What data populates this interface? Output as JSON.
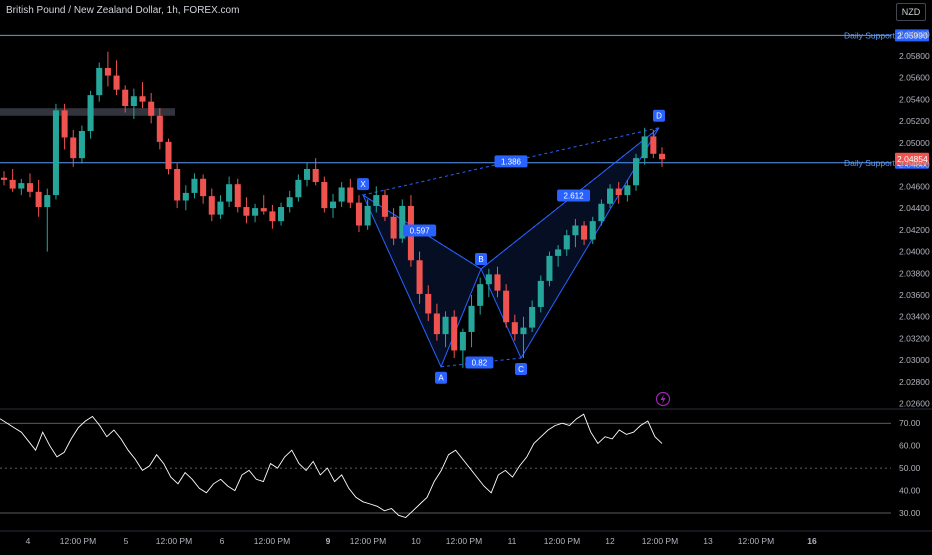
{
  "header": {
    "title": "British Pound / New Zealand Dollar, 1h, FOREX.com",
    "currency": "NZD"
  },
  "colors": {
    "up": "#26a69a",
    "down": "#ef5350",
    "pattern": "#2962ff",
    "support": "#5b9cf6",
    "rsi": "#ffffff",
    "text": "#b2b5be"
  },
  "chart_data": [
    {
      "type": "candlestick",
      "title": "British Pound / New Zealand Dollar, 1h, FOREX.com",
      "x_ticks": [
        "4",
        "12:00 PM",
        "5",
        "12:00 PM",
        "6",
        "12:00 PM",
        "9",
        "12:00 PM",
        "10",
        "12:00 PM",
        "11",
        "12:00 PM",
        "12",
        "12:00 PM",
        "13",
        "12:00 PM",
        "16"
      ],
      "y_ticks": [
        2.06,
        2.058,
        2.056,
        2.054,
        2.052,
        2.05,
        2.048,
        2.046,
        2.044,
        2.042,
        2.04,
        2.038,
        2.036,
        2.034,
        2.032,
        2.03,
        2.028,
        2.026
      ],
      "y_tick_labels": [
        "2.06000",
        "2.05800",
        "2.05600",
        "2.05400",
        "2.05200",
        "2.05000",
        "2.04800",
        "2.04600",
        "2.04400",
        "2.04200",
        "2.04000",
        "2.03800",
        "2.03600",
        "2.03400",
        "2.03200",
        "2.03000",
        "2.02800",
        "2.02600"
      ],
      "ylim": [
        2.0256,
        2.0615
      ],
      "current_price": {
        "label": "2.04854",
        "value": 2.04854
      },
      "support_lines": [
        {
          "name": "Daily Support",
          "value": 2.0599,
          "label": "2.05990"
        },
        {
          "name": "Daily Support",
          "value": 2.04817,
          "label": "2.04817"
        }
      ],
      "resistance_zone": {
        "from": 2.0525,
        "to": 2.0532
      },
      "harmonic_pattern": {
        "points": [
          {
            "name": "X",
            "x": "9 ~08:00",
            "y": 2.0452
          },
          {
            "name": "A",
            "x": "10 ~09:00",
            "y": 2.0294
          },
          {
            "name": "B",
            "x": "10 ~18:00",
            "y": 2.0384
          },
          {
            "name": "C",
            "x": "11 ~05:00",
            "y": 2.0302
          },
          {
            "name": "D",
            "x": "12 ~12:00",
            "y": 2.0514
          }
        ],
        "ratios": [
          {
            "label": "0.597",
            "between": "XA-AB"
          },
          {
            "label": "0.82",
            "between": "AB-BC"
          },
          {
            "label": "2.612",
            "between": "BC-CD"
          },
          {
            "label": "1.386",
            "between": "XA-XD"
          }
        ]
      },
      "candles": [
        [
          2.0468,
          2.0474,
          2.0461,
          2.0466
        ],
        [
          2.0466,
          2.0476,
          2.0455,
          2.0458
        ],
        [
          2.0458,
          2.0467,
          2.0452,
          2.0463
        ],
        [
          2.0463,
          2.0472,
          2.045,
          2.0455
        ],
        [
          2.0455,
          2.0466,
          2.0432,
          2.0441
        ],
        [
          2.0441,
          2.0458,
          2.04,
          2.0452
        ],
        [
          2.0452,
          2.0536,
          2.0448,
          2.053
        ],
        [
          2.053,
          2.0536,
          2.0494,
          2.0505
        ],
        [
          2.0505,
          2.0512,
          2.0478,
          2.0486
        ],
        [
          2.0486,
          2.0516,
          2.0481,
          2.0511
        ],
        [
          2.0511,
          2.0548,
          2.0504,
          2.0544
        ],
        [
          2.0544,
          2.0574,
          2.0538,
          2.0569
        ],
        [
          2.0569,
          2.0584,
          2.0552,
          2.0562
        ],
        [
          2.0562,
          2.0576,
          2.0544,
          2.0549
        ],
        [
          2.0549,
          2.0553,
          2.0528,
          2.0534
        ],
        [
          2.0534,
          2.055,
          2.0522,
          2.0543
        ],
        [
          2.0543,
          2.0556,
          2.0532,
          2.0538
        ],
        [
          2.0538,
          2.0546,
          2.0518,
          2.0525
        ],
        [
          2.0525,
          2.0532,
          2.0494,
          2.0501
        ],
        [
          2.0501,
          2.0504,
          2.0471,
          2.0476
        ],
        [
          2.0476,
          2.0482,
          2.044,
          2.0447
        ],
        [
          2.0447,
          2.0461,
          2.0438,
          2.0454
        ],
        [
          2.0454,
          2.0472,
          2.0449,
          2.0467
        ],
        [
          2.0467,
          2.0471,
          2.0444,
          2.0451
        ],
        [
          2.0451,
          2.0458,
          2.0428,
          2.0434
        ],
        [
          2.0434,
          2.0452,
          2.043,
          2.0446
        ],
        [
          2.0446,
          2.0469,
          2.0441,
          2.0462
        ],
        [
          2.0462,
          2.0467,
          2.0436,
          2.0441
        ],
        [
          2.0441,
          2.045,
          2.0426,
          2.0433
        ],
        [
          2.0433,
          2.0444,
          2.0427,
          2.044
        ],
        [
          2.044,
          2.0452,
          2.0434,
          2.0437
        ],
        [
          2.0437,
          2.0443,
          2.0421,
          2.0428
        ],
        [
          2.0428,
          2.0445,
          2.0424,
          2.0441
        ],
        [
          2.0441,
          2.0456,
          2.0436,
          2.045
        ],
        [
          2.045,
          2.0471,
          2.0446,
          2.0466
        ],
        [
          2.0466,
          2.0482,
          2.046,
          2.0476
        ],
        [
          2.0476,
          2.0486,
          2.0461,
          2.0464
        ],
        [
          2.0464,
          2.0469,
          2.0436,
          2.044
        ],
        [
          2.044,
          2.0453,
          2.0431,
          2.0446
        ],
        [
          2.0446,
          2.0464,
          2.0441,
          2.0459
        ],
        [
          2.0459,
          2.0467,
          2.044,
          2.0445
        ],
        [
          2.0445,
          2.0452,
          2.0418,
          2.0424
        ],
        [
          2.0424,
          2.0448,
          2.042,
          2.0442
        ],
        [
          2.0442,
          2.046,
          2.0436,
          2.0452
        ],
        [
          2.0452,
          2.0457,
          2.0428,
          2.0432
        ],
        [
          2.0432,
          2.044,
          2.0406,
          2.0412
        ],
        [
          2.0412,
          2.0448,
          2.0408,
          2.0442
        ],
        [
          2.0442,
          2.0452,
          2.0386,
          2.0392
        ],
        [
          2.0392,
          2.04,
          2.0352,
          2.0361
        ],
        [
          2.0361,
          2.0369,
          2.0336,
          2.0343
        ],
        [
          2.0343,
          2.0352,
          2.0318,
          2.0324
        ],
        [
          2.0324,
          2.0345,
          2.0312,
          2.034
        ],
        [
          2.034,
          2.0346,
          2.0302,
          2.0309
        ],
        [
          2.0309,
          2.0329,
          2.0293,
          2.0326
        ],
        [
          2.0326,
          2.036,
          2.0312,
          2.035
        ],
        [
          2.035,
          2.0376,
          2.0342,
          2.037
        ],
        [
          2.037,
          2.0384,
          2.0358,
          2.0379
        ],
        [
          2.0379,
          2.0386,
          2.0358,
          2.0364
        ],
        [
          2.0364,
          2.037,
          2.033,
          2.0335
        ],
        [
          2.0335,
          2.0342,
          2.0318,
          2.0324
        ],
        [
          2.0324,
          2.034,
          2.0302,
          2.033
        ],
        [
          2.033,
          2.0355,
          2.0326,
          2.0349
        ],
        [
          2.0349,
          2.0378,
          2.0344,
          2.0373
        ],
        [
          2.0373,
          2.04,
          2.0368,
          2.0396
        ],
        [
          2.0396,
          2.0406,
          2.0386,
          2.0402
        ],
        [
          2.0402,
          2.042,
          2.0396,
          2.0415
        ],
        [
          2.0415,
          2.043,
          2.0404,
          2.0424
        ],
        [
          2.0424,
          2.0428,
          2.0406,
          2.0411
        ],
        [
          2.0411,
          2.0432,
          2.0407,
          2.0428
        ],
        [
          2.0428,
          2.0448,
          2.0424,
          2.0444
        ],
        [
          2.0444,
          2.0462,
          2.044,
          2.0458
        ],
        [
          2.0458,
          2.0464,
          2.0444,
          2.0452
        ],
        [
          2.0452,
          2.0466,
          2.0446,
          2.0461
        ],
        [
          2.0461,
          2.049,
          2.0456,
          2.0486
        ],
        [
          2.0486,
          2.0514,
          2.048,
          2.0506
        ],
        [
          2.0506,
          2.0512,
          2.0486,
          2.049
        ],
        [
          2.049,
          2.0496,
          2.0478,
          2.0485
        ]
      ]
    },
    {
      "type": "line",
      "title": "",
      "y_ticks": [
        70,
        60,
        50,
        40,
        30
      ],
      "y_tick_labels": [
        "70.00",
        "60.00",
        "50.00",
        "40.00",
        "30.00"
      ],
      "ylim": [
        26,
        75
      ],
      "bands": [
        30,
        50,
        70
      ],
      "series": [
        {
          "values": [
            72,
            70,
            68,
            66,
            62,
            58,
            66,
            60,
            55,
            57,
            63,
            68,
            71,
            73,
            69,
            64,
            67,
            63,
            58,
            54,
            49,
            51,
            56,
            52,
            46,
            43,
            48,
            45,
            41,
            39,
            43,
            45,
            42,
            40,
            47,
            49,
            45,
            44,
            52,
            50,
            55,
            58,
            52,
            49,
            53,
            47,
            50,
            44,
            47,
            41,
            37,
            35,
            34,
            33,
            31,
            32,
            29,
            28,
            31,
            34,
            37,
            44,
            49,
            56,
            58,
            54,
            50,
            46,
            42,
            39,
            47,
            49,
            46,
            51,
            55,
            61,
            64,
            67,
            69,
            70,
            69,
            72,
            74,
            66,
            61,
            64,
            63,
            67,
            65,
            66,
            69,
            71,
            64,
            61
          ]
        }
      ]
    }
  ],
  "icons": {
    "alert": "lightning-icon"
  }
}
